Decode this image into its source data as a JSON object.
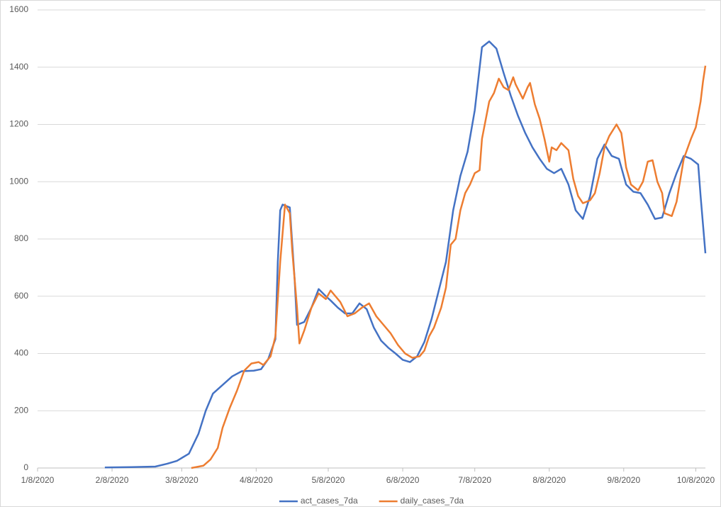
{
  "chart_data": {
    "type": "line",
    "xlim": [
      "1/8/2020",
      "10/12/2020"
    ],
    "xticks": [
      "1/8/2020",
      "2/8/2020",
      "3/8/2020",
      "4/8/2020",
      "5/8/2020",
      "6/8/2020",
      "7/8/2020",
      "8/8/2020",
      "9/8/2020",
      "10/8/2020"
    ],
    "ylim": [
      0,
      1600
    ],
    "yticks": [
      0,
      200,
      400,
      600,
      800,
      1000,
      1200,
      1400,
      1600
    ],
    "grid": true,
    "legend": "bottom",
    "series": [
      {
        "name": "act_cases_7da",
        "color": "#4472c4",
        "x": [
          "2/5/2020",
          "2/16/2020",
          "2/26/2020",
          "3/2/2020",
          "3/6/2020",
          "3/11/2020",
          "3/15/2020",
          "3/18/2020",
          "3/21/2020",
          "3/25/2020",
          "3/29/2020",
          "4/2/2020",
          "4/7/2020",
          "4/10/2020",
          "4/13/2020",
          "4/16/2020",
          "4/17/2020",
          "4/18/2020",
          "4/19/2020",
          "4/22/2020",
          "4/24/2020",
          "4/25/2020",
          "4/28/2020",
          "5/1/2020",
          "5/4/2020",
          "5/7/2020",
          "5/9/2020",
          "5/12/2020",
          "5/15/2020",
          "5/18/2020",
          "5/21/2020",
          "5/24/2020",
          "5/27/2020",
          "5/30/2020",
          "6/2/2020",
          "6/5/2020",
          "6/8/2020",
          "6/11/2020",
          "6/14/2020",
          "6/17/2020",
          "6/20/2020",
          "6/23/2020",
          "6/26/2020",
          "6/29/2020",
          "7/2/2020",
          "7/5/2020",
          "7/8/2020",
          "7/11/2020",
          "7/14/2020",
          "7/17/2020",
          "7/20/2020",
          "7/23/2020",
          "7/26/2020",
          "7/29/2020",
          "8/1/2020",
          "8/4/2020",
          "8/7/2020",
          "8/10/2020",
          "8/13/2020",
          "8/16/2020",
          "8/19/2020",
          "8/22/2020",
          "8/25/2020",
          "8/28/2020",
          "8/31/2020",
          "9/3/2020",
          "9/6/2020",
          "9/9/2020",
          "9/12/2020",
          "9/15/2020",
          "9/18/2020",
          "9/21/2020",
          "9/24/2020",
          "9/27/2020",
          "9/30/2020",
          "10/3/2020",
          "10/6/2020",
          "10/9/2020",
          "10/10/2020",
          "10/11/2020",
          "10/12/2020"
        ],
        "values": [
          2,
          3,
          5,
          15,
          25,
          50,
          120,
          200,
          260,
          290,
          320,
          338,
          340,
          345,
          380,
          450,
          720,
          900,
          920,
          910,
          660,
          500,
          510,
          560,
          625,
          600,
          585,
          560,
          540,
          540,
          575,
          555,
          490,
          445,
          420,
          400,
          378,
          370,
          390,
          440,
          520,
          620,
          720,
          900,
          1020,
          1105,
          1250,
          1470,
          1490,
          1465,
          1380,
          1300,
          1230,
          1170,
          1120,
          1080,
          1045,
          1030,
          1045,
          990,
          900,
          870,
          950,
          1080,
          1130,
          1090,
          1080,
          990,
          965,
          960,
          920,
          870,
          875,
          960,
          1030,
          1090,
          1080,
          1060,
          950,
          850,
          750
        ]
      },
      {
        "name": "daily_cases_7da",
        "color": "#ed7d31",
        "x": [
          "3/12/2020",
          "3/17/2020",
          "3/20/2020",
          "3/23/2020",
          "3/25/2020",
          "3/28/2020",
          "3/31/2020",
          "4/3/2020",
          "4/6/2020",
          "4/9/2020",
          "4/11/2020",
          "4/14/2020",
          "4/16/2020",
          "4/18/2020",
          "4/20/2020",
          "4/22/2020",
          "4/23/2020",
          "4/25/2020",
          "4/26/2020",
          "4/28/2020",
          "5/1/2020",
          "5/4/2020",
          "5/7/2020",
          "5/9/2020",
          "5/11/2020",
          "5/13/2020",
          "5/16/2020",
          "5/19/2020",
          "5/22/2020",
          "5/25/2020",
          "5/28/2020",
          "5/31/2020",
          "6/3/2020",
          "6/6/2020",
          "6/9/2020",
          "6/12/2020",
          "6/15/2020",
          "6/17/2020",
          "6/19/2020",
          "6/21/2020",
          "6/24/2020",
          "6/26/2020",
          "6/28/2020",
          "6/30/2020",
          "7/2/2020",
          "7/4/2020",
          "7/6/2020",
          "7/8/2020",
          "7/10/2020",
          "7/11/2020",
          "7/14/2020",
          "7/16/2020",
          "7/18/2020",
          "7/20/2020",
          "7/22/2020",
          "7/24/2020",
          "7/25/2020",
          "7/28/2020",
          "7/30/2020",
          "7/31/2020",
          "8/2/2020",
          "8/4/2020",
          "8/6/2020",
          "8/8/2020",
          "8/9/2020",
          "8/11/2020",
          "8/13/2020",
          "8/16/2020",
          "8/18/2020",
          "8/20/2020",
          "8/22/2020",
          "8/25/2020",
          "8/27/2020",
          "8/29/2020",
          "8/31/2020",
          "9/2/2020",
          "9/5/2020",
          "9/7/2020",
          "9/9/2020",
          "9/11/2020",
          "9/14/2020",
          "9/16/2020",
          "9/18/2020",
          "9/20/2020",
          "9/22/2020",
          "9/24/2020",
          "9/25/2020",
          "9/28/2020",
          "9/30/2020",
          "10/1/2020",
          "10/3/2020",
          "10/6/2020",
          "10/8/2020",
          "10/10/2020",
          "10/11/2020",
          "10/12/2020"
        ],
        "values": [
          0,
          8,
          30,
          70,
          140,
          210,
          270,
          340,
          365,
          370,
          360,
          390,
          460,
          720,
          920,
          890,
          760,
          560,
          435,
          480,
          560,
          610,
          590,
          620,
          600,
          580,
          530,
          540,
          560,
          575,
          530,
          500,
          470,
          430,
          400,
          385,
          390,
          410,
          460,
          490,
          560,
          630,
          780,
          800,
          900,
          960,
          990,
          1030,
          1040,
          1150,
          1280,
          1310,
          1360,
          1330,
          1320,
          1365,
          1340,
          1290,
          1330,
          1345,
          1270,
          1220,
          1150,
          1070,
          1120,
          1110,
          1135,
          1110,
          1010,
          950,
          925,
          935,
          960,
          1030,
          1120,
          1160,
          1200,
          1170,
          1050,
          990,
          970,
          1000,
          1070,
          1075,
          1000,
          960,
          890,
          880,
          930,
          980,
          1080,
          1150,
          1190,
          1280,
          1350,
          1405
        ]
      }
    ]
  }
}
